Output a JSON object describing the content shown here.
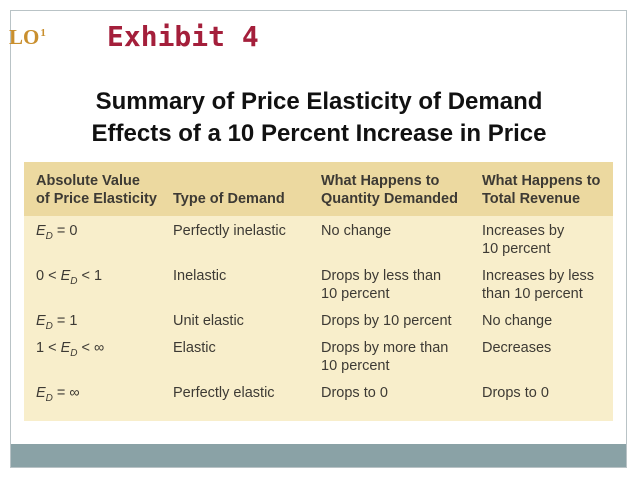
{
  "badge": {
    "label": "LO",
    "superscript": "1"
  },
  "title": "Exhibit 4",
  "subtitle": {
    "line1": "Summary of Price Elasticity of Demand",
    "line2": "Effects of a 10 Percent Increase in Price"
  },
  "table": {
    "headers": [
      "Absolute Value\nof Price Elasticity",
      "Type of Demand",
      "What Happens to\nQuantity Demanded",
      "What Happens to\nTotal Revenue"
    ],
    "rows": [
      [
        "E_D = 0",
        "Perfectly inelastic",
        "No change",
        "Increases by\n10 percent"
      ],
      [
        "0 < E_D < 1",
        "Inelastic",
        "Drops by less than\n10 percent",
        "Increases by less\nthan 10 percent"
      ],
      [
        "E_D = 1",
        "Unit elastic",
        "Drops by 10 percent",
        "No change"
      ],
      [
        "1 < E_D < ∞",
        "Elastic",
        "Drops by more than\n10 percent",
        "Decreases"
      ],
      [
        "E_D = ∞",
        "Perfectly elastic",
        "Drops to 0",
        "Drops to 0"
      ]
    ]
  },
  "colors": {
    "title": "#a41f3b",
    "badge": "#c98f2e",
    "table_bg": "#f8eecb",
    "header_bg": "#ecd9a0",
    "bottom_bar": "#8aa2a6"
  }
}
